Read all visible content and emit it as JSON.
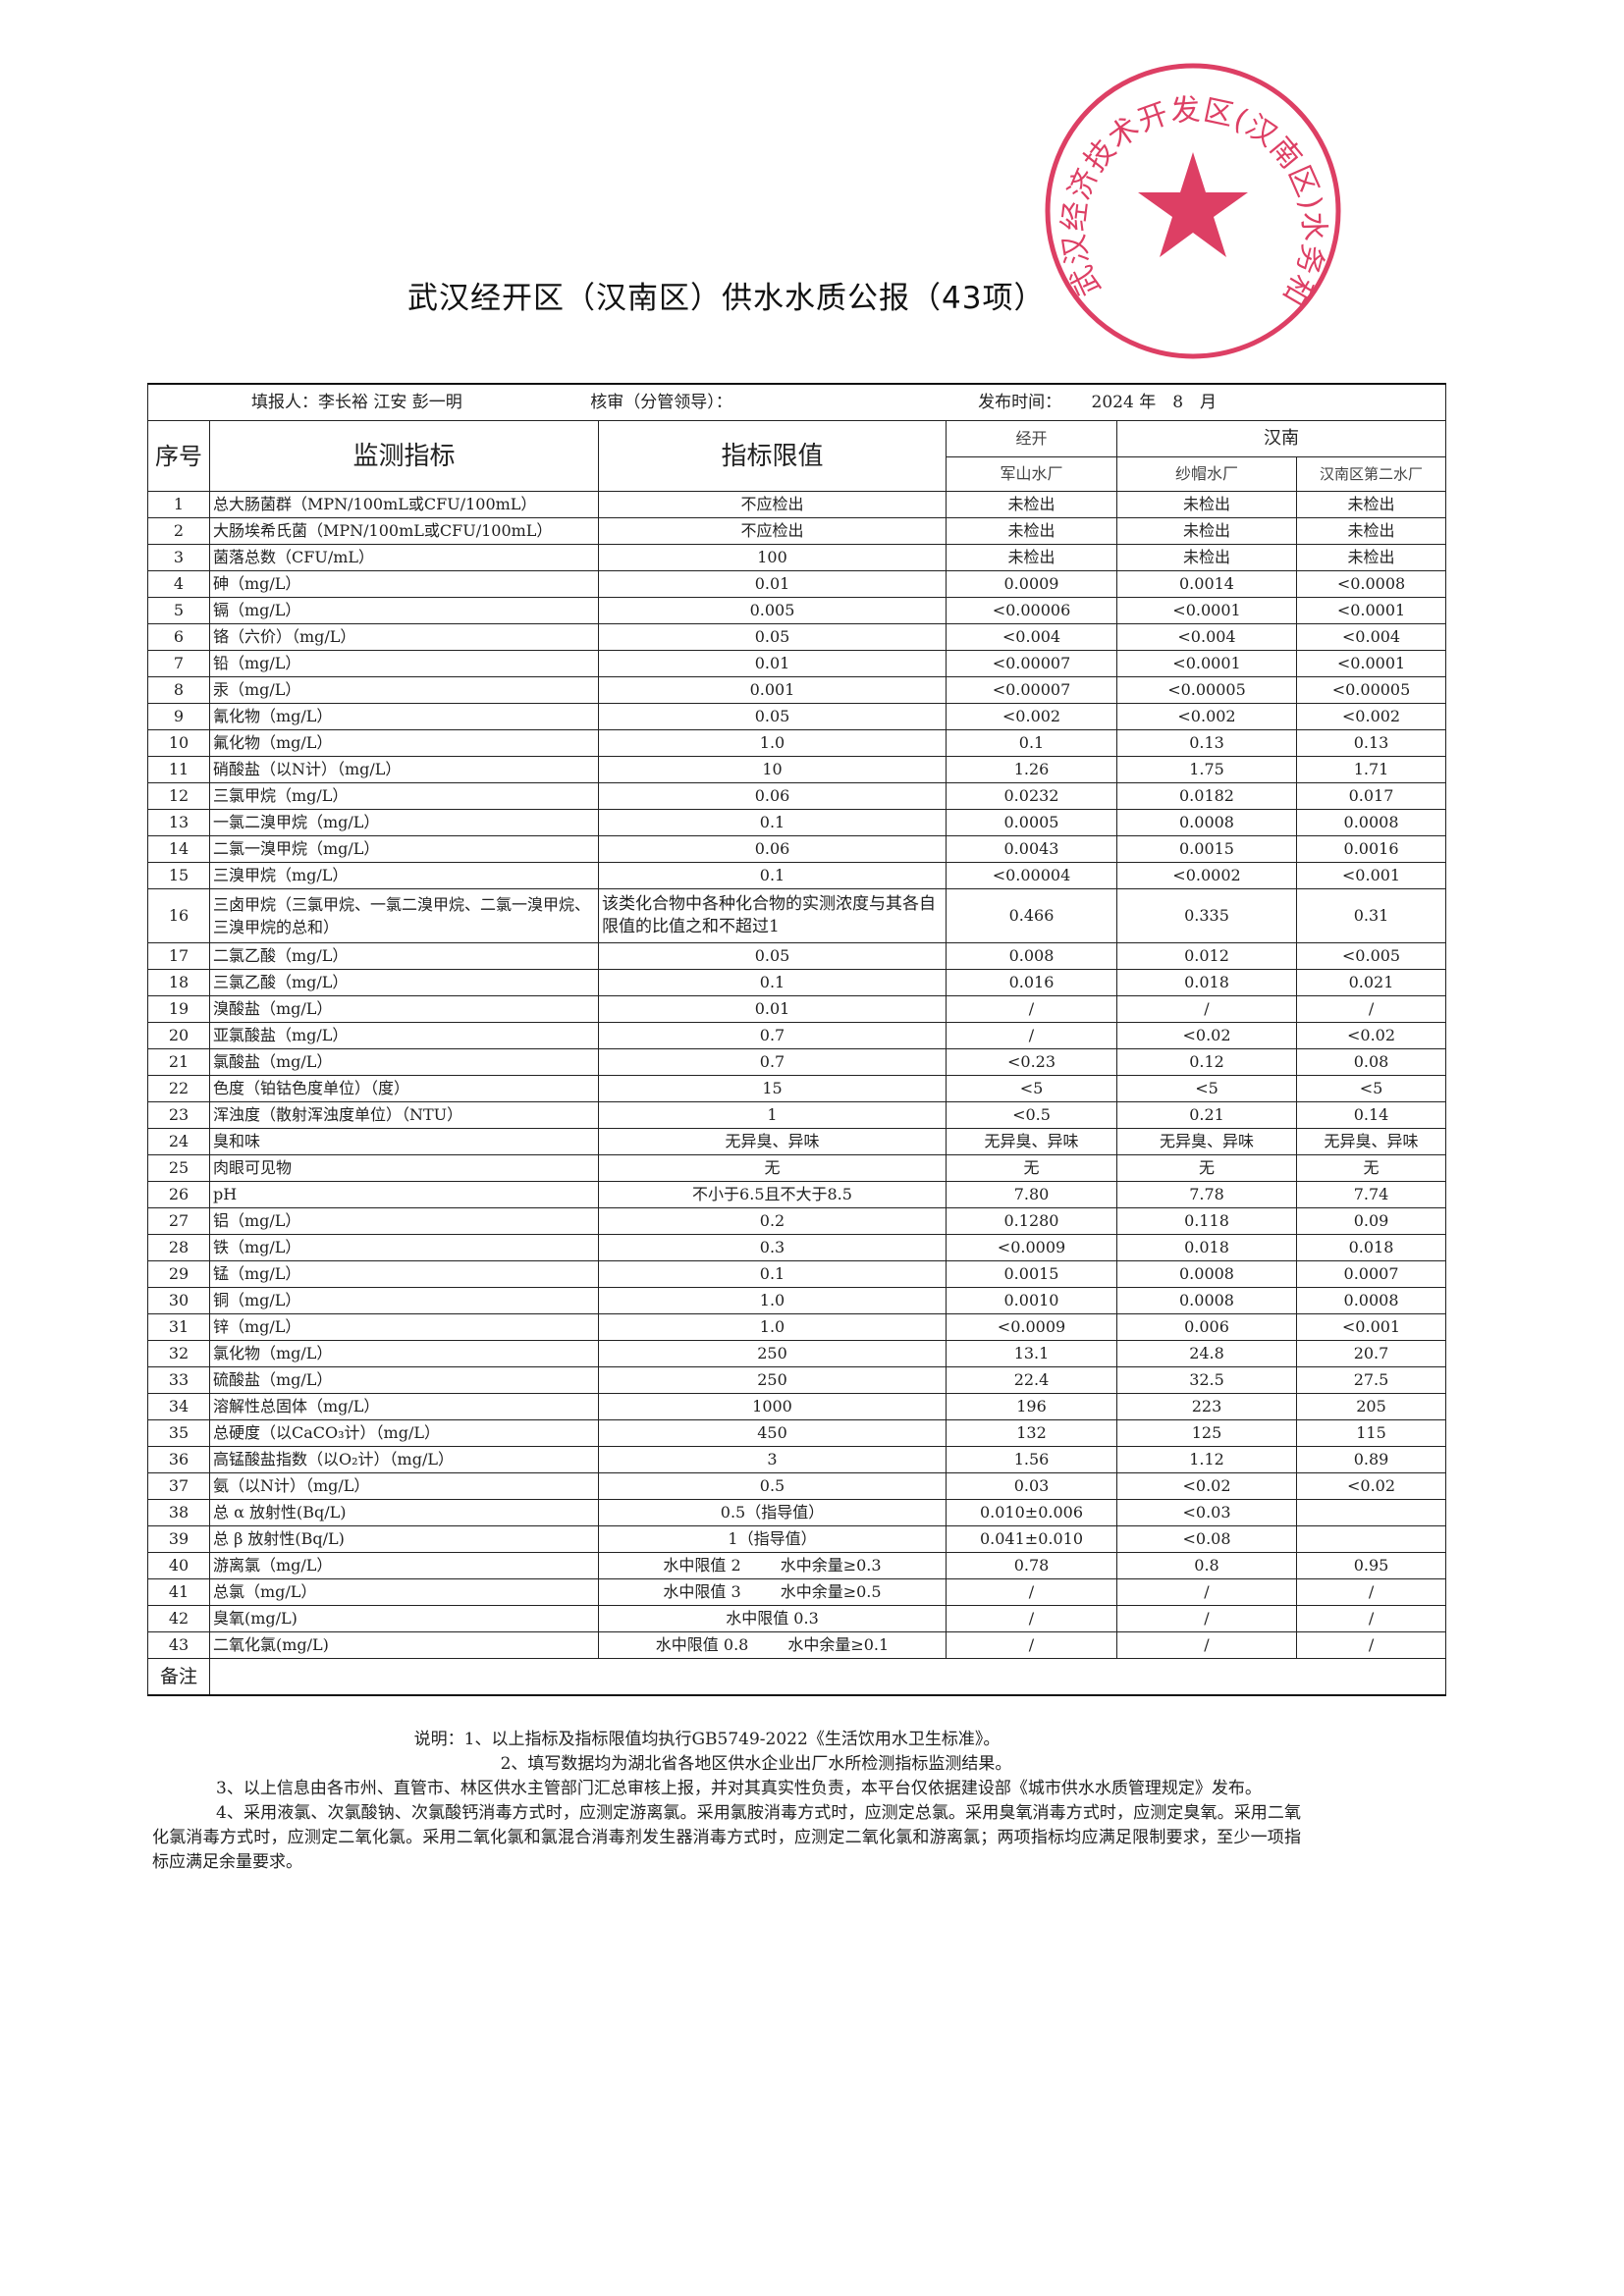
{
  "title": "武汉经开区（汉南区）供水水质公报（43项）",
  "stamp": {
    "text": "武汉经济技术开发区(汉南区)水务和湖泊局",
    "color": "#d81e4a"
  },
  "info": {
    "reporter": "填报人：李长裕 江安 彭一明",
    "reviewer": "核审（分管领导）：",
    "publish_label": "发布时间：",
    "publish_date": "2024 年　8　月"
  },
  "headers": {
    "no": "序号",
    "indicator": "监测指标",
    "limit": "指标限值",
    "group1": "经开",
    "group2": "汉南",
    "plants": [
      "军山水厂",
      "纱帽水厂",
      "汉南区第二水厂"
    ]
  },
  "rows": [
    {
      "no": "1",
      "name": "总大肠菌群（MPN/100mL或CFU/100mL）",
      "limit": "不应检出",
      "values": [
        "未检出",
        "未检出",
        "未检出"
      ]
    },
    {
      "no": "2",
      "name": "大肠埃希氏菌（MPN/100mL或CFU/100mL）",
      "limit": "不应检出",
      "values": [
        "未检出",
        "未检出",
        "未检出"
      ]
    },
    {
      "no": "3",
      "name": "菌落总数（CFU/mL）",
      "limit": "100",
      "values": [
        "未检出",
        "未检出",
        "未检出"
      ]
    },
    {
      "no": "4",
      "name": "砷（mg/L）",
      "limit": "0.01",
      "values": [
        "0.0009",
        "0.0014",
        "<0.0008"
      ]
    },
    {
      "no": "5",
      "name": "镉（mg/L）",
      "limit": "0.005",
      "values": [
        "<0.00006",
        "<0.0001",
        "<0.0001"
      ]
    },
    {
      "no": "6",
      "name": "铬（六价）（mg/L）",
      "limit": "0.05",
      "values": [
        "<0.004",
        "<0.004",
        "<0.004"
      ]
    },
    {
      "no": "7",
      "name": "铅（mg/L）",
      "limit": "0.01",
      "values": [
        "<0.00007",
        "<0.0001",
        "<0.0001"
      ]
    },
    {
      "no": "8",
      "name": "汞（mg/L）",
      "limit": "0.001",
      "values": [
        "<0.00007",
        "<0.00005",
        "<0.00005"
      ]
    },
    {
      "no": "9",
      "name": "氰化物（mg/L）",
      "limit": "0.05",
      "values": [
        "<0.002",
        "<0.002",
        "<0.002"
      ]
    },
    {
      "no": "10",
      "name": "氟化物（mg/L）",
      "limit": "1.0",
      "values": [
        "0.1",
        "0.13",
        "0.13"
      ]
    },
    {
      "no": "11",
      "name": "硝酸盐（以N计）（mg/L）",
      "limit": "10",
      "values": [
        "1.26",
        "1.75",
        "1.71"
      ]
    },
    {
      "no": "12",
      "name": "三氯甲烷（mg/L）",
      "limit": "0.06",
      "values": [
        "0.0232",
        "0.0182",
        "0.017"
      ]
    },
    {
      "no": "13",
      "name": "一氯二溴甲烷（mg/L）",
      "limit": "0.1",
      "values": [
        "0.0005",
        "0.0008",
        "0.0008"
      ]
    },
    {
      "no": "14",
      "name": "二氯一溴甲烷（mg/L）",
      "limit": "0.06",
      "values": [
        "0.0043",
        "0.0015",
        "0.0016"
      ]
    },
    {
      "no": "15",
      "name": "三溴甲烷（mg/L）",
      "limit": "0.1",
      "values": [
        "<0.00004",
        "<0.0002",
        "<0.001"
      ]
    },
    {
      "no": "16",
      "name": "三卤甲烷（三氯甲烷、一氯二溴甲烷、二氯一溴甲烷、三溴甲烷的总和）",
      "limit": "该类化合物中各种化合物的实测浓度与其各自限值的比值之和不超过1",
      "values": [
        "0.466",
        "0.335",
        "0.31"
      ],
      "tall": true
    },
    {
      "no": "17",
      "name": "二氯乙酸（mg/L）",
      "limit": "0.05",
      "values": [
        "0.008",
        "0.012",
        "<0.005"
      ]
    },
    {
      "no": "18",
      "name": "三氯乙酸（mg/L）",
      "limit": "0.1",
      "values": [
        "0.016",
        "0.018",
        "0.021"
      ]
    },
    {
      "no": "19",
      "name": "溴酸盐（mg/L）",
      "limit": "0.01",
      "values": [
        "/",
        "/",
        "/"
      ]
    },
    {
      "no": "20",
      "name": "亚氯酸盐（mg/L）",
      "limit": "0.7",
      "values": [
        "/",
        "<0.02",
        "<0.02"
      ]
    },
    {
      "no": "21",
      "name": "氯酸盐（mg/L）",
      "limit": "0.7",
      "values": [
        "<0.23",
        "0.12",
        "0.08"
      ]
    },
    {
      "no": "22",
      "name": "色度（铂钴色度单位）（度）",
      "limit": "15",
      "values": [
        "<5",
        "<5",
        "<5"
      ]
    },
    {
      "no": "23",
      "name": "浑浊度（散射浑浊度单位）（NTU）",
      "limit": "1",
      "values": [
        "<0.5",
        "0.21",
        "0.14"
      ]
    },
    {
      "no": "24",
      "name": "臭和味",
      "limit": "无异臭、异味",
      "values": [
        "无异臭、异味",
        "无异臭、异味",
        "无异臭、异味"
      ]
    },
    {
      "no": "25",
      "name": "肉眼可见物",
      "limit": "无",
      "values": [
        "无",
        "无",
        "无"
      ]
    },
    {
      "no": "26",
      "name": "pH",
      "limit": "不小于6.5且不大于8.5",
      "values": [
        "7.80",
        "7.78",
        "7.74"
      ]
    },
    {
      "no": "27",
      "name": "铝（mg/L）",
      "limit": "0.2",
      "values": [
        "0.1280",
        "0.118",
        "0.09"
      ]
    },
    {
      "no": "28",
      "name": "铁（mg/L）",
      "limit": "0.3",
      "values": [
        "<0.0009",
        "0.018",
        "0.018"
      ]
    },
    {
      "no": "29",
      "name": "锰（mg/L）",
      "limit": "0.1",
      "values": [
        "0.0015",
        "0.0008",
        "0.0007"
      ]
    },
    {
      "no": "30",
      "name": "铜（mg/L）",
      "limit": "1.0",
      "values": [
        "0.0010",
        "0.0008",
        "0.0008"
      ]
    },
    {
      "no": "31",
      "name": "锌（mg/L）",
      "limit": "1.0",
      "values": [
        "<0.0009",
        "0.006",
        "<0.001"
      ]
    },
    {
      "no": "32",
      "name": "氯化物（mg/L）",
      "limit": "250",
      "values": [
        "13.1",
        "24.8",
        "20.7"
      ]
    },
    {
      "no": "33",
      "name": "硫酸盐（mg/L）",
      "limit": "250",
      "values": [
        "22.4",
        "32.5",
        "27.5"
      ]
    },
    {
      "no": "34",
      "name": "溶解性总固体（mg/L）",
      "limit": "1000",
      "values": [
        "196",
        "223",
        "205"
      ]
    },
    {
      "no": "35",
      "name": "总硬度（以CaCO₃计）（mg/L）",
      "limit": "450",
      "values": [
        "132",
        "125",
        "115"
      ]
    },
    {
      "no": "36",
      "name": "高锰酸盐指数（以O₂计）（mg/L）",
      "limit": "3",
      "values": [
        "1.56",
        "1.12",
        "0.89"
      ]
    },
    {
      "no": "37",
      "name": "氨（以N计）（mg/L）",
      "limit": "0.5",
      "values": [
        "0.03",
        "<0.02",
        "<0.02"
      ]
    },
    {
      "no": "38",
      "name": "总 α 放射性(Bq/L)",
      "limit": "0.5（指导值）",
      "values": [
        "0.010±0.006",
        "<0.03",
        ""
      ]
    },
    {
      "no": "39",
      "name": "总 β 放射性(Bq/L)",
      "limit": "1（指导值）",
      "values": [
        "0.041±0.010",
        "<0.08",
        ""
      ]
    },
    {
      "no": "40",
      "name": "游离氯（mg/L）",
      "limit": "水中限值 2",
      "limit2": "水中余量≥0.3",
      "values": [
        "0.78",
        "0.8",
        "0.95"
      ]
    },
    {
      "no": "41",
      "name": "总氯（mg/L）",
      "limit": "水中限值 3",
      "limit2": "水中余量≥0.5",
      "values": [
        "/",
        "/",
        "/"
      ]
    },
    {
      "no": "42",
      "name": "臭氧(mg/L)",
      "limit": "水中限值 0.3",
      "values": [
        "/",
        "/",
        "/"
      ]
    },
    {
      "no": "43",
      "name": "二氧化氯(mg/L)",
      "limit": "水中限值 0.8",
      "limit2": "水中余量≥0.1",
      "values": [
        "/",
        "/",
        "/"
      ]
    }
  ],
  "remark_label": "备注",
  "notes": [
    "说明：1、以上指标及指标限值均执行GB5749-2022《生活饮用水卫生标准》。",
    "2、填写数据均为湖北省各地区供水企业出厂水所检测指标监测结果。",
    "3、以上信息由各市州、直管市、林区供水主管部门汇总审核上报，并对其真实性负责，本平台仅依据建设部《城市供水水质管理规定》发布。",
    "4、采用液氯、次氯酸钠、次氯酸钙消毒方式时，应测定游离氯。采用氯胺消毒方式时，应测定总氯。采用臭氧消毒方式时，应测定臭氧。采用二氧化氯消毒方式时，应测定二氧化氯。采用二氧化氯和氯混合消毒剂发生器消毒方式时，应测定二氧化氯和游离氯；两项指标均应满足限制要求，至少一项指标应满足余量要求。"
  ]
}
